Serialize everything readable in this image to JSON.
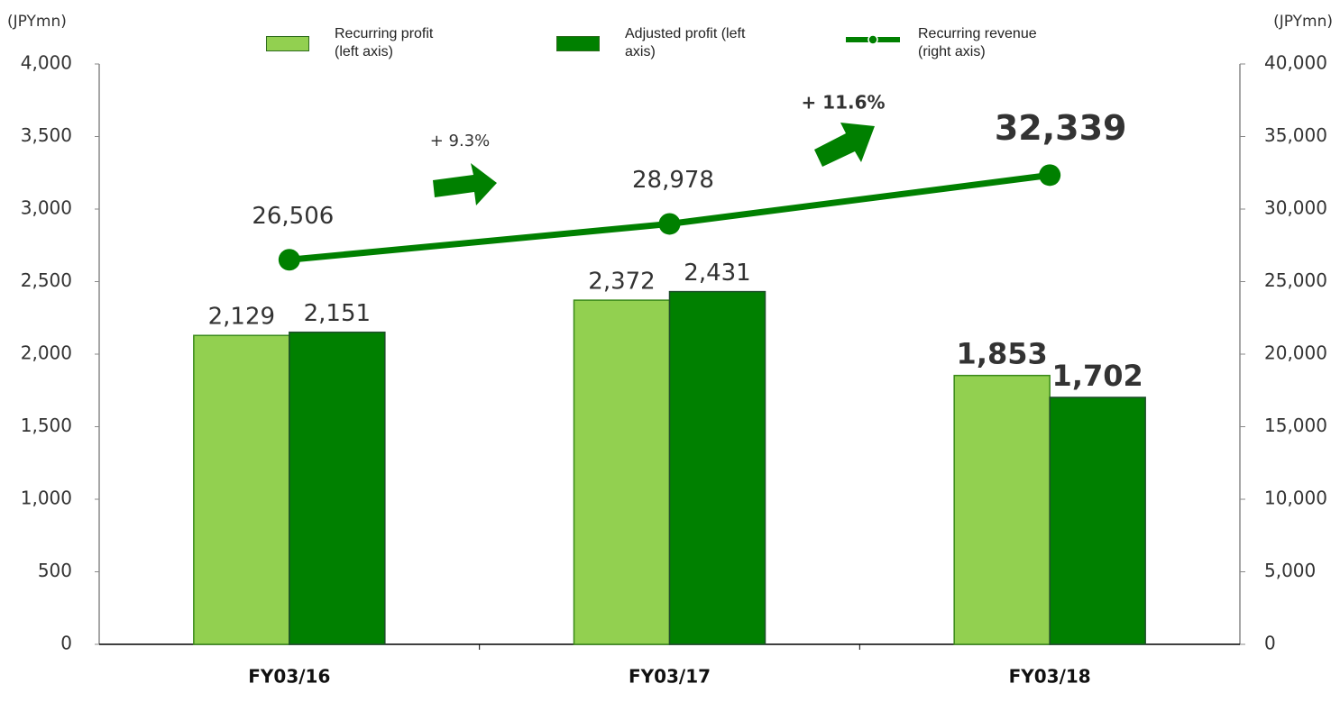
{
  "chart_data": {
    "type": "bar",
    "y_label": "(JPYmn)",
    "y2_label": "(JPYmn)",
    "categories": [
      "FY03/16",
      "FY03/17",
      "FY03/18"
    ],
    "series": [
      {
        "name": "Recurring profit (left axis)",
        "color": "#92d050",
        "values": [
          2129,
          2372,
          1853
        ],
        "value_labels": [
          "2,129",
          "2,372",
          "1,853"
        ]
      },
      {
        "name": "Adjusted profit (left axis)",
        "color": "#008000",
        "values": [
          2151,
          2431,
          1702
        ],
        "value_labels": [
          "2,151",
          "2,431",
          "1,702"
        ]
      },
      {
        "name": "Recurring revenue (right axis)",
        "type": "line",
        "axis": "y2",
        "color": "#008000",
        "values": [
          26506,
          28978,
          32339
        ],
        "value_labels": [
          "26,506",
          "28,978",
          "32,339"
        ]
      }
    ],
    "annotations": [
      "+ 9.3%",
      "+ 11.6%"
    ],
    "ylim": [
      0,
      4000
    ],
    "yticks": [
      0,
      500,
      {
        "value": 1000,
        "label": "1,000"
      },
      {
        "value": 1500,
        "label": "1,500"
      },
      {
        "value": 2000,
        "label": "2,000"
      },
      {
        "value": 2500,
        "label": "2,500"
      },
      {
        "value": 3000,
        "label": "3,000"
      },
      {
        "value": 3500,
        "label": "3,500"
      },
      {
        "value": 4000,
        "label": "4,000"
      }
    ],
    "y2lim": [
      0,
      40000
    ],
    "y2ticks": [
      0,
      {
        "value": 5000,
        "label": "5,000"
      },
      {
        "value": 10000,
        "label": "10,000"
      },
      {
        "value": 15000,
        "label": "15,000"
      },
      {
        "value": 20000,
        "label": "20,000"
      },
      {
        "value": 25000,
        "label": "25,000"
      },
      {
        "value": 30000,
        "label": "30,000"
      },
      {
        "value": 35000,
        "label": "35,000"
      },
      {
        "value": 40000,
        "label": "40,000"
      }
    ]
  }
}
